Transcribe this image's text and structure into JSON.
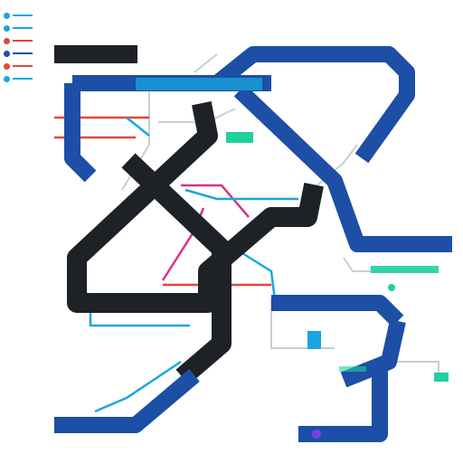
{
  "diagram": {
    "type": "transit-style network map",
    "labels": [],
    "colors": {
      "background": "#ffffff",
      "dark_line": "#1e2126",
      "blue_line": "#1c4fa5",
      "cyan_line": "#1aa6e0",
      "teal_accent": "#1fd0a0",
      "red_line": "#e2473b",
      "magenta_line": "#d6338d",
      "grey_line": "#c9cdd3",
      "violet_accent": "#7b3ee6"
    },
    "legend_colors": [
      "#1aa6e0",
      "#1aa6e0",
      "#e2473b",
      "#1c4fa5",
      "#e2473b",
      "#1aa6e0"
    ]
  }
}
